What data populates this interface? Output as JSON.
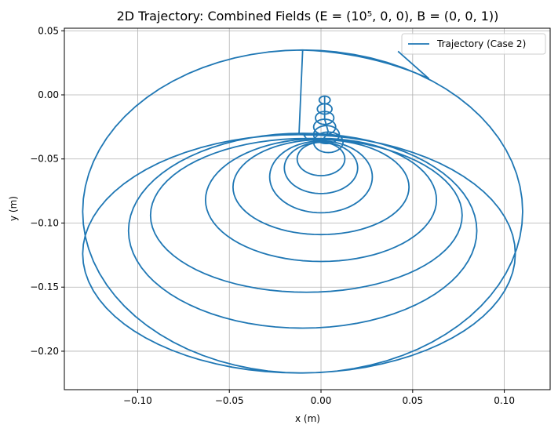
{
  "chart_data": {
    "type": "line",
    "title": "2D Trajectory: Combined Fields (E = (10⁵, 0, 0), B = (0, 0, 1))",
    "xlabel": "x (m)",
    "ylabel": "y (m)",
    "xlim": [
      -0.14,
      0.125
    ],
    "ylim": [
      -0.23,
      0.052
    ],
    "x_ticks": [
      -0.1,
      -0.05,
      0.0,
      0.05,
      0.1
    ],
    "x_tick_labels": [
      "−0.10",
      "−0.05",
      "0.00",
      "0.05",
      "0.10"
    ],
    "y_ticks": [
      0.05,
      0.0,
      -0.05,
      -0.1,
      -0.15,
      -0.2
    ],
    "y_tick_labels": [
      "0.05",
      "0.00",
      "−0.05",
      "−0.10",
      "−0.15",
      "−0.20"
    ],
    "grid": true,
    "legend_position": "top-right",
    "line_color": "#1f77b4",
    "series": [
      {
        "name": "Trajectory (Case 2)",
        "description_points": {
          "start": [
            0.0,
            -0.003
          ],
          "end": [
            0.042,
            0.034
          ],
          "outermost_loop_extent": {
            "xmin": -0.128,
            "xmax": 0.113,
            "ymin": -0.217,
            "ymax": 0.038
          },
          "loop_count": 12
        }
      }
    ]
  }
}
